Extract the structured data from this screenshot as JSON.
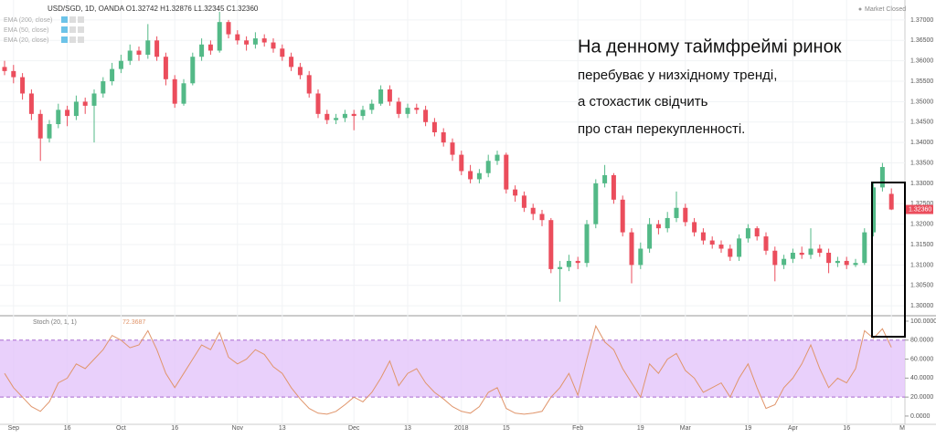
{
  "chart_data": [
    {
      "type": "candlestick",
      "title": "USD/SGD, 1D, OANDA O1.32742 H1.32876 L1.32345 C1.32360",
      "indicators": [
        "EMA (200, close)",
        "EMA (50, close)",
        "EMA (20, close)"
      ],
      "status": "Market Closed",
      "categories": [
        null,
        "Sep",
        null,
        null,
        null,
        null,
        null,
        "16",
        null,
        null,
        null,
        null,
        null,
        "Oct",
        null,
        null,
        null,
        null,
        null,
        "16",
        null,
        null,
        null,
        null,
        null,
        null,
        "Nov",
        null,
        null,
        null,
        null,
        "13",
        null,
        null,
        null,
        null,
        null,
        null,
        null,
        "Dec",
        null,
        null,
        null,
        null,
        null,
        "13",
        null,
        null,
        null,
        null,
        null,
        "2018",
        null,
        null,
        null,
        null,
        "15",
        null,
        null,
        null,
        null,
        null,
        null,
        null,
        "Feb",
        null,
        null,
        null,
        null,
        null,
        null,
        "19",
        null,
        null,
        null,
        null,
        "Mar",
        null,
        null,
        null,
        null,
        null,
        null,
        "19",
        null,
        null,
        null,
        null,
        "Apr",
        null,
        null,
        null,
        null,
        null,
        "16",
        null,
        null,
        null,
        null,
        "M"
      ],
      "open": [
        1.3585,
        1.3575,
        1.356,
        1.352,
        1.347,
        1.341,
        1.3445,
        1.348,
        1.3465,
        1.35,
        1.349,
        1.352,
        1.355,
        1.358,
        1.36,
        1.3625,
        1.3615,
        1.365,
        1.361,
        1.3555,
        1.3495,
        1.3545,
        1.361,
        1.364,
        1.3625,
        1.3695,
        1.3665,
        1.365,
        1.364,
        1.3655,
        1.3645,
        1.363,
        1.361,
        1.3585,
        1.3565,
        1.352,
        1.347,
        1.3455,
        1.346,
        1.347,
        1.3465,
        1.348,
        1.3495,
        1.353,
        1.35,
        1.347,
        1.3485,
        1.348,
        1.345,
        1.3425,
        1.34,
        1.337,
        1.333,
        1.331,
        1.3325,
        1.3355,
        1.337,
        1.3285,
        1.327,
        1.324,
        1.3225,
        1.321,
        1.309,
        1.3095,
        1.311,
        1.3105,
        1.32,
        1.33,
        1.332,
        1.326,
        1.318,
        1.31,
        1.314,
        1.32,
        1.319,
        1.3215,
        1.324,
        1.3205,
        1.318,
        1.316,
        1.315,
        1.314,
        1.312,
        1.3165,
        1.319,
        1.317,
        1.3135,
        1.31,
        1.3115,
        1.313,
        1.3125,
        1.314,
        1.313,
        1.3105,
        1.311,
        1.31,
        1.3105,
        1.318,
        1.329,
        1.32742
      ],
      "high": [
        1.36,
        1.359,
        1.357,
        1.353,
        1.348,
        1.3455,
        1.3495,
        1.349,
        1.3515,
        1.351,
        1.353,
        1.356,
        1.3595,
        1.3615,
        1.364,
        1.3635,
        1.369,
        1.366,
        1.362,
        1.3565,
        1.3555,
        1.362,
        1.3655,
        1.365,
        1.372,
        1.37,
        1.3675,
        1.366,
        1.367,
        1.3665,
        1.3655,
        1.364,
        1.362,
        1.3595,
        1.3575,
        1.353,
        1.348,
        1.347,
        1.348,
        1.348,
        1.349,
        1.3505,
        1.354,
        1.354,
        1.351,
        1.3495,
        1.3495,
        1.349,
        1.346,
        1.3435,
        1.341,
        1.338,
        1.3345,
        1.3335,
        1.337,
        1.338,
        1.3375,
        1.3295,
        1.328,
        1.325,
        1.3235,
        1.3215,
        1.311,
        1.3125,
        1.312,
        1.321,
        1.331,
        1.3345,
        1.3325,
        1.327,
        1.319,
        1.3155,
        1.3215,
        1.321,
        1.323,
        1.328,
        1.325,
        1.3215,
        1.319,
        1.317,
        1.316,
        1.315,
        1.3175,
        1.32,
        1.3195,
        1.318,
        1.3145,
        1.3125,
        1.314,
        1.3145,
        1.319,
        1.315,
        1.314,
        1.312,
        1.312,
        1.3115,
        1.319,
        1.33,
        1.335,
        1.32876
      ],
      "low": [
        1.3565,
        1.3545,
        1.3505,
        1.3455,
        1.3355,
        1.34,
        1.3435,
        1.344,
        1.3455,
        1.347,
        1.34,
        1.351,
        1.354,
        1.357,
        1.359,
        1.36,
        1.3605,
        1.36,
        1.354,
        1.3485,
        1.349,
        1.354,
        1.36,
        1.3615,
        1.362,
        1.3655,
        1.364,
        1.3625,
        1.363,
        1.3635,
        1.362,
        1.36,
        1.3575,
        1.3555,
        1.351,
        1.346,
        1.3445,
        1.3445,
        1.345,
        1.343,
        1.3455,
        1.347,
        1.349,
        1.349,
        1.346,
        1.346,
        1.347,
        1.344,
        1.3415,
        1.339,
        1.3355,
        1.332,
        1.33,
        1.33,
        1.3315,
        1.3345,
        1.3275,
        1.3255,
        1.323,
        1.321,
        1.3195,
        1.308,
        1.301,
        1.3085,
        1.309,
        1.3095,
        1.319,
        1.329,
        1.325,
        1.317,
        1.3055,
        1.309,
        1.313,
        1.3175,
        1.318,
        1.3205,
        1.3195,
        1.317,
        1.315,
        1.314,
        1.313,
        1.311,
        1.311,
        1.3155,
        1.316,
        1.3125,
        1.306,
        1.309,
        1.3105,
        1.3115,
        1.3115,
        1.312,
        1.308,
        1.3095,
        1.309,
        1.3095,
        1.31,
        1.317,
        1.328,
        1.32345
      ],
      "close": [
        1.3575,
        1.356,
        1.352,
        1.347,
        1.341,
        1.3445,
        1.348,
        1.3465,
        1.35,
        1.349,
        1.352,
        1.355,
        1.358,
        1.36,
        1.3625,
        1.3615,
        1.365,
        1.361,
        1.3555,
        1.3495,
        1.3545,
        1.361,
        1.364,
        1.3625,
        1.3695,
        1.3665,
        1.365,
        1.364,
        1.3655,
        1.3645,
        1.363,
        1.361,
        1.3585,
        1.3565,
        1.352,
        1.347,
        1.3455,
        1.346,
        1.347,
        1.3465,
        1.348,
        1.3495,
        1.353,
        1.35,
        1.347,
        1.3485,
        1.348,
        1.345,
        1.3425,
        1.34,
        1.337,
        1.333,
        1.331,
        1.3325,
        1.3355,
        1.337,
        1.3285,
        1.327,
        1.324,
        1.3225,
        1.321,
        1.309,
        1.3095,
        1.311,
        1.3105,
        1.32,
        1.33,
        1.332,
        1.326,
        1.318,
        1.31,
        1.314,
        1.32,
        1.319,
        1.3215,
        1.324,
        1.3205,
        1.318,
        1.316,
        1.315,
        1.314,
        1.312,
        1.3165,
        1.319,
        1.317,
        1.3135,
        1.31,
        1.3115,
        1.313,
        1.3125,
        1.314,
        1.313,
        1.3105,
        1.311,
        1.31,
        1.3105,
        1.318,
        1.329,
        1.334,
        1.3236
      ],
      "up_color": "#53b987",
      "down_color": "#eb4d5c",
      "grid": true,
      "ylim": [
        1.2978,
        1.3749
      ],
      "yticks": [
        {
          "value": 1.3,
          "label": "1.30000"
        },
        {
          "value": 1.305,
          "label": "1.30500"
        },
        {
          "value": 1.31,
          "label": "1.31000"
        },
        {
          "value": 1.315,
          "label": "1.31500"
        },
        {
          "value": 1.32,
          "label": "1.32000"
        },
        {
          "value": 1.325,
          "label": "1.32500"
        },
        {
          "value": 1.33,
          "label": "1.33000"
        },
        {
          "value": 1.335,
          "label": "1.33500"
        },
        {
          "value": 1.34,
          "label": "1.34000"
        },
        {
          "value": 1.345,
          "label": "1.34500"
        },
        {
          "value": 1.35,
          "label": "1.35000"
        },
        {
          "value": 1.355,
          "label": "1.35500"
        },
        {
          "value": 1.36,
          "label": "1.36000"
        },
        {
          "value": 1.365,
          "label": "1.36500"
        },
        {
          "value": 1.37,
          "label": "1.37000"
        }
      ],
      "price_tag": "1.32360",
      "annotations": [
        "На денному таймфреймі ринок",
        "перебуває у низхідному тренді,",
        "а стохастик свідчить",
        "про стан перекупленності."
      ]
    },
    {
      "type": "line",
      "title": "Stoch (20, 1, 1)",
      "color": "#e0956b",
      "band": [
        20,
        80
      ],
      "band_color": "#e3c4fa",
      "grid": true,
      "values": [
        45,
        30,
        20,
        10,
        5,
        15,
        35,
        40,
        55,
        50,
        60,
        70,
        85,
        80,
        72,
        75,
        90,
        70,
        45,
        30,
        45,
        60,
        75,
        70,
        88,
        62,
        55,
        60,
        70,
        65,
        52,
        45,
        30,
        18,
        8,
        3,
        2,
        5,
        12,
        20,
        15,
        25,
        40,
        58,
        32,
        45,
        50,
        35,
        25,
        18,
        10,
        5,
        3,
        10,
        25,
        30,
        8,
        3,
        2,
        3,
        5,
        20,
        30,
        45,
        22,
        60,
        95,
        78,
        70,
        50,
        35,
        20,
        55,
        45,
        60,
        66,
        48,
        40,
        25,
        30,
        35,
        20,
        40,
        55,
        30,
        8,
        12,
        30,
        40,
        55,
        75,
        50,
        30,
        40,
        35,
        50,
        90,
        82,
        92,
        72.3687
      ],
      "ylim": [
        -8.7,
        103.8
      ],
      "yticks": [
        {
          "value": 0,
          "label": "0.0000"
        },
        {
          "value": 20,
          "label": "20.0000"
        },
        {
          "value": 40,
          "label": "40.0000"
        },
        {
          "value": 60,
          "label": "60.0000"
        },
        {
          "value": 80,
          "label": "80.0000"
        },
        {
          "value": 100,
          "label": "100.0000"
        }
      ]
    }
  ]
}
